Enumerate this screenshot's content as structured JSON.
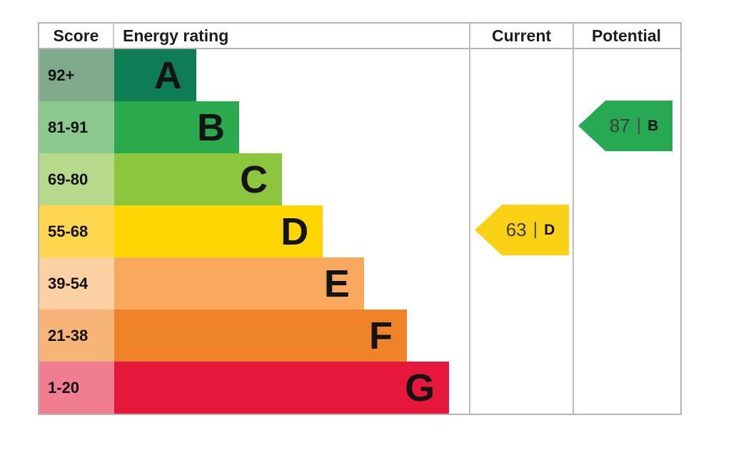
{
  "table": {
    "headers": {
      "score": "Score",
      "energy_rating": "Energy rating",
      "current": "Current",
      "potential": "Potential"
    },
    "bands": [
      {
        "letter": "A",
        "score_range": "92+",
        "bar_color": "#0e7c55",
        "score_bg": "#7faa8c",
        "bar_width_pct": 23.1
      },
      {
        "letter": "B",
        "score_range": "81-91",
        "bar_color": "#2aa94d",
        "score_bg": "#8cc98f",
        "bar_width_pct": 35.2
      },
      {
        "letter": "C",
        "score_range": "69-80",
        "bar_color": "#8cc63f",
        "score_bg": "#b7d98b",
        "bar_width_pct": 47.3
      },
      {
        "letter": "D",
        "score_range": "55-68",
        "bar_color": "#fdd500",
        "score_bg": "#fed74e",
        "bar_width_pct": 58.8
      },
      {
        "letter": "E",
        "score_range": "39-54",
        "bar_color": "#f9a95d",
        "score_bg": "#fbd0a3",
        "bar_width_pct": 70.4
      },
      {
        "letter": "F",
        "score_range": "21-38",
        "bar_color": "#ee8329",
        "score_bg": "#f6b476",
        "bar_width_pct": 82.5
      },
      {
        "letter": "G",
        "score_range": "1-20",
        "bar_color": "#e5183c",
        "score_bg": "#f07e90",
        "bar_width_pct": 94.4
      }
    ],
    "current_rating": {
      "value": "63",
      "separator": "|",
      "letter": "D",
      "arrow_color": "#fbd116",
      "band_index": 3
    },
    "potential_rating": {
      "value": "87",
      "separator": "|",
      "letter": "B",
      "arrow_color": "#27a853",
      "band_index": 1
    }
  },
  "chart_data": {
    "type": "bar",
    "title": "EPC energy efficiency rating chart",
    "categories": [
      "A",
      "B",
      "C",
      "D",
      "E",
      "F",
      "G"
    ],
    "score_ranges": [
      "92+",
      "81-91",
      "69-80",
      "55-68",
      "39-54",
      "21-38",
      "1-20"
    ],
    "bar_width_pct": [
      23.1,
      35.2,
      47.3,
      58.8,
      70.4,
      82.5,
      94.4
    ],
    "band_colors": [
      "#0e7c55",
      "#2aa94d",
      "#8cc63f",
      "#fdd500",
      "#f9a95d",
      "#ee8329",
      "#e5183c"
    ],
    "columns": [
      "Score",
      "Energy rating",
      "Current",
      "Potential"
    ],
    "current": {
      "score": 63,
      "band": "D"
    },
    "potential": {
      "score": 87,
      "band": "B"
    },
    "legend_position": "none",
    "grid": false
  }
}
